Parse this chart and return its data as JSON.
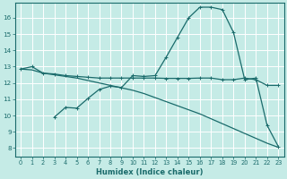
{
  "xlabel": "Humidex (Indice chaleur)",
  "bg_color": "#c5ebe6",
  "line_color": "#1a6b6b",
  "grid_color": "#ffffff",
  "xlim": [
    -0.5,
    23.5
  ],
  "ylim": [
    7.5,
    16.9
  ],
  "xticks": [
    0,
    1,
    2,
    3,
    4,
    5,
    6,
    7,
    8,
    9,
    10,
    11,
    12,
    13,
    14,
    15,
    16,
    17,
    18,
    19,
    20,
    21,
    22,
    23
  ],
  "yticks": [
    8,
    9,
    10,
    11,
    12,
    13,
    14,
    15,
    16
  ],
  "curve1_x": [
    0,
    1,
    2,
    3,
    4,
    5,
    6,
    7,
    8,
    9,
    10,
    11,
    12,
    13,
    14,
    15,
    16,
    17,
    18,
    19,
    20,
    21,
    22,
    23
  ],
  "curve1_y": [
    12.85,
    13.0,
    12.6,
    12.55,
    12.45,
    12.4,
    12.35,
    12.3,
    12.3,
    12.3,
    12.3,
    12.3,
    12.3,
    12.28,
    12.28,
    12.28,
    12.3,
    12.3,
    12.2,
    12.2,
    12.3,
    12.2,
    11.85,
    11.85
  ],
  "curve2_x": [
    3,
    4,
    5,
    6,
    7,
    8,
    9,
    10,
    11,
    12,
    13,
    14,
    15,
    16,
    17,
    18,
    19,
    20,
    21,
    22,
    23
  ],
  "curve2_y": [
    9.9,
    10.5,
    10.45,
    11.05,
    11.6,
    11.8,
    11.72,
    12.45,
    12.4,
    12.45,
    13.6,
    14.8,
    16.0,
    16.65,
    16.65,
    16.5,
    15.1,
    12.2,
    12.3,
    9.4,
    8.1
  ],
  "curve3_x": [
    0,
    1,
    2,
    3,
    4,
    5,
    6,
    7,
    8,
    9,
    10,
    11,
    12,
    13,
    14,
    15,
    16,
    17,
    18,
    19,
    20,
    21,
    22,
    23
  ],
  "curve3_y": [
    12.85,
    12.8,
    12.6,
    12.5,
    12.4,
    12.3,
    12.15,
    12.0,
    11.85,
    11.7,
    11.55,
    11.35,
    11.1,
    10.85,
    10.6,
    10.35,
    10.1,
    9.8,
    9.5,
    9.2,
    8.9,
    8.6,
    8.3,
    8.05
  ]
}
